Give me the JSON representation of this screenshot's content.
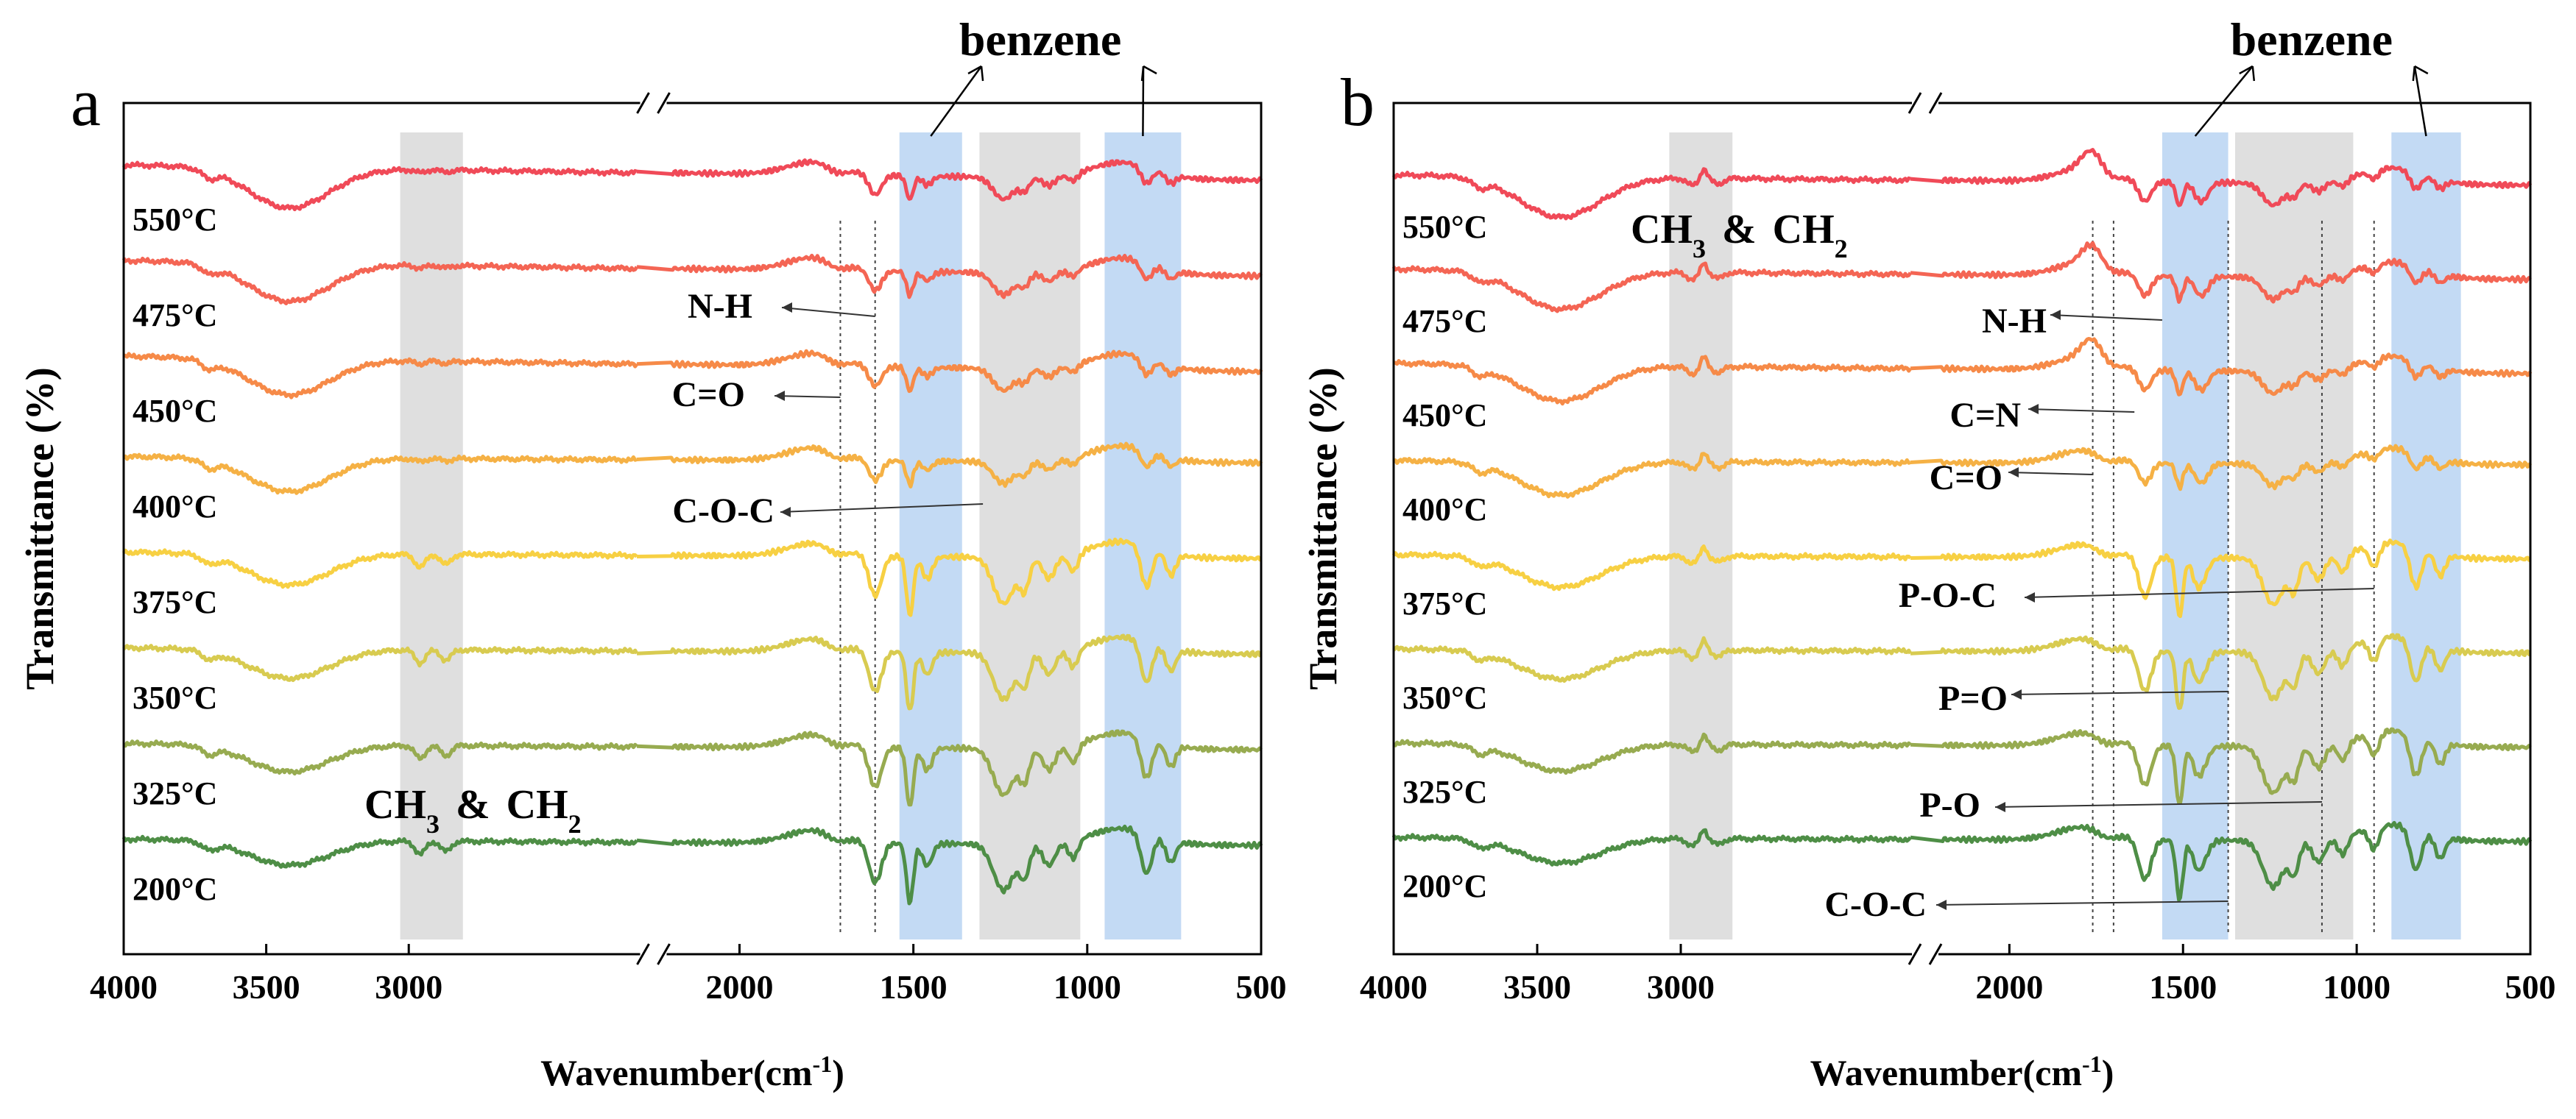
{
  "chart_data": [
    {
      "type": "line",
      "panel_label": "a",
      "xlabel_base": "Wavenumber(cm",
      "xlabel_sup": "-1",
      "xlabel_end": ")",
      "ylabel": "Transmittance (%)",
      "x_segments": [
        [
          4000,
          2200
        ],
        [
          2200,
          500
        ]
      ],
      "x_ticks": [
        4000,
        3500,
        3000,
        2000,
        1500,
        1000,
        500
      ],
      "axis_break": true,
      "series": [
        {
          "name": "550°C",
          "color": "#f04a58"
        },
        {
          "name": "475°C",
          "color": "#f46554"
        },
        {
          "name": "450°C",
          "color": "#f68a48"
        },
        {
          "name": "400°C",
          "color": "#f5b145"
        },
        {
          "name": "375°C",
          "color": "#f7d043"
        },
        {
          "name": "350°C",
          "color": "#d8cb50"
        },
        {
          "name": "325°C",
          "color": "#97ab50"
        },
        {
          "name": "200°C",
          "color": "#4e8e46"
        }
      ],
      "bands": [
        {
          "name": "CH3-CH2 band",
          "from": 3030,
          "to": 2810,
          "color": "#d9d9d9"
        },
        {
          "name": "benzene band 1",
          "from": 1540,
          "to": 1360,
          "color": "#b8d4f2"
        },
        {
          "name": "gray band 2",
          "from": 1310,
          "to": 1020,
          "color": "#d9d9d9"
        },
        {
          "name": "benzene band 2",
          "from": 950,
          "to": 730,
          "color": "#b8d4f2"
        }
      ],
      "annotations": [
        {
          "id": "benzene",
          "text": "benzene"
        },
        {
          "id": "ch3ch2",
          "text_a": "CH",
          "sub_a": "3",
          "mid": " & ",
          "text_b": "CH",
          "sub_b": "2"
        },
        {
          "id": "nh",
          "text": "N-H"
        },
        {
          "id": "co",
          "text": "C=O"
        },
        {
          "id": "coc",
          "text": "C-O-C"
        }
      ]
    },
    {
      "type": "line",
      "panel_label": "b",
      "xlabel_base": "Wavenumber(cm",
      "xlabel_sup": "-1",
      "xlabel_end": ")",
      "ylabel": "Transmittance (%)",
      "x_segments": [
        [
          4000,
          2200
        ],
        [
          2200,
          500
        ]
      ],
      "x_ticks": [
        4000,
        3500,
        3000,
        2000,
        1500,
        1000,
        500
      ],
      "axis_break": true,
      "series": [
        {
          "name": "550°C",
          "color": "#f04a58"
        },
        {
          "name": "475°C",
          "color": "#f46554"
        },
        {
          "name": "450°C",
          "color": "#f68a48"
        },
        {
          "name": "400°C",
          "color": "#f5b145"
        },
        {
          "name": "375°C",
          "color": "#f7d043"
        },
        {
          "name": "350°C",
          "color": "#d8cb50"
        },
        {
          "name": "325°C",
          "color": "#97ab50"
        },
        {
          "name": "200°C",
          "color": "#4e8e46"
        }
      ],
      "bands": [
        {
          "name": "CH3-CH2 band",
          "from": 3040,
          "to": 2820,
          "color": "#d9d9d9"
        },
        {
          "name": "benzene band 1",
          "from": 1560,
          "to": 1370,
          "color": "#b8d4f2"
        },
        {
          "name": "gray band 2",
          "from": 1350,
          "to": 1010,
          "color": "#d9d9d9"
        },
        {
          "name": "benzene band 2",
          "from": 900,
          "to": 700,
          "color": "#b8d4f2"
        }
      ],
      "annotations": [
        {
          "id": "benzene",
          "text": "benzene"
        },
        {
          "id": "ch3ch2",
          "text_a": "CH",
          "sub_a": "3",
          "mid": " & ",
          "text_b": "CH",
          "sub_b": "2"
        },
        {
          "id": "nh",
          "text": "N-H"
        },
        {
          "id": "cn",
          "text": "C=N"
        },
        {
          "id": "co",
          "text": "C=O"
        },
        {
          "id": "poc",
          "text": "P-O-C"
        },
        {
          "id": "po_double",
          "text": "P=O"
        },
        {
          "id": "po",
          "text": "P-O"
        },
        {
          "id": "coc",
          "text": "C-O-C"
        }
      ]
    }
  ]
}
